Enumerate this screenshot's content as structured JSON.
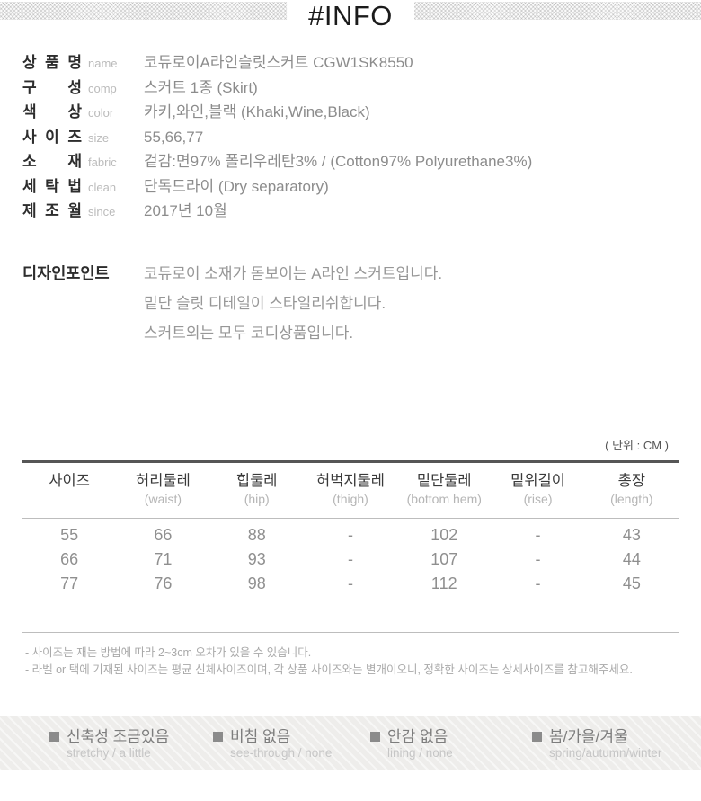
{
  "header": {
    "title": "#INFO"
  },
  "info": {
    "rows": [
      {
        "label": "상품명",
        "sub": "name",
        "value": "코듀로이A라인슬릿스커트 CGW1SK8550"
      },
      {
        "label": "구성",
        "sub": "comp",
        "value": "스커트 1종 (Skirt)"
      },
      {
        "label": "색상",
        "sub": "color",
        "value": "카키,와인,블랙 (Khaki,Wine,Black)"
      },
      {
        "label": "사이즈",
        "sub": "size",
        "value": "55,66,77"
      },
      {
        "label": "소재",
        "sub": "fabric",
        "value": "겉감:면97% 폴리우레탄3% / (Cotton97% Polyurethane3%)"
      },
      {
        "label": "세탁법",
        "sub": "clean",
        "value": "단독드라이 (Dry separatory)"
      },
      {
        "label": "제조월",
        "sub": "since",
        "value": "2017년 10월"
      }
    ]
  },
  "design_point": {
    "label": "디자인포인트",
    "lines": [
      "코듀로이 소재가 돋보이는 A라인 스커트입니다.",
      "밑단 슬릿 디테일이 스타일리쉬합니다.",
      "스커트외는 모두 코디상품입니다."
    ]
  },
  "size_table": {
    "unit_note": "( 단위 : CM )",
    "columns": [
      {
        "ko": "사이즈",
        "en": ""
      },
      {
        "ko": "허리둘레",
        "en": "(waist)"
      },
      {
        "ko": "힙둘레",
        "en": "(hip)"
      },
      {
        "ko": "허벅지둘레",
        "en": "(thigh)"
      },
      {
        "ko": "밑단둘레",
        "en": "(bottom hem)"
      },
      {
        "ko": "밑위길이",
        "en": "(rise)"
      },
      {
        "ko": "총장",
        "en": "(length)"
      }
    ],
    "rows": [
      [
        "55",
        "66",
        "88",
        "-",
        "102",
        "-",
        "43"
      ],
      [
        "66",
        "71",
        "93",
        "-",
        "107",
        "-",
        "44"
      ],
      [
        "77",
        "76",
        "98",
        "-",
        "112",
        "-",
        "45"
      ]
    ]
  },
  "notes": [
    "- 사이즈는 재는 방법에 따라 2~3cm 오차가 있을 수 있습니다.",
    "- 라벨 or 택에 기재된 사이즈는 평균 신체사이즈이며, 각 상품 사이즈와는 별개이오니, 정확한 사이즈는 상세사이즈를 참고해주세요."
  ],
  "features": [
    {
      "ko": "신축성 조금있음",
      "en": "stretchy / a little"
    },
    {
      "ko": "비침 없음",
      "en": "see-through / none"
    },
    {
      "ko": "안감 없음",
      "en": "lining / none"
    },
    {
      "ko": "봄/가을/겨울",
      "en": "spring/autumn/winter"
    }
  ],
  "colors": {
    "label-dark": "#2d2d2d",
    "value-gray": "#8c8c8c",
    "sub-gray": "#bbbbbb",
    "border-dark": "#565656",
    "border-light": "#bdbdbd",
    "note-gray": "#a9a9a9",
    "feature-ko": "#7d7d7d",
    "feature-en": "#c6c6c6"
  }
}
